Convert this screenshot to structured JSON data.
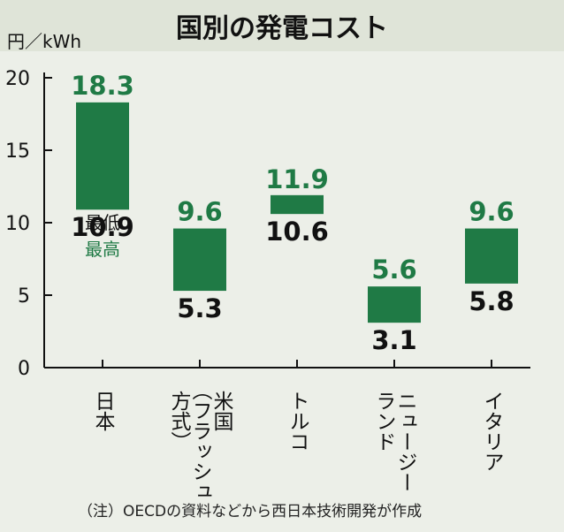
{
  "chart_data": {
    "type": "bar",
    "title": "国別の発電コスト",
    "unit_label": "円／kWh",
    "ylim": [
      0,
      20
    ],
    "yticks": [
      "0",
      "5",
      "10",
      "15",
      "20"
    ],
    "categories": [
      {
        "label_lines": [
          "日本"
        ],
        "low": 10.9,
        "high": 18.3,
        "low_label": "10.9",
        "high_label": "18.3"
      },
      {
        "label_lines": [
          "米国",
          "（フラッシュ",
          "方式）"
        ],
        "low": 5.3,
        "high": 9.6,
        "low_label": "5.3",
        "high_label": "9.6"
      },
      {
        "label_lines": [
          "トルコ"
        ],
        "low": 10.6,
        "high": 11.9,
        "low_label": "10.6",
        "high_label": "11.9"
      },
      {
        "label_lines": [
          "ニュージー",
          "ランド"
        ],
        "low": 3.1,
        "high": 5.6,
        "low_label": "3.1",
        "high_label": "5.6"
      },
      {
        "label_lines": [
          "イタリア"
        ],
        "low": 5.8,
        "high": 9.6,
        "low_label": "5.8",
        "high_label": "9.6"
      }
    ],
    "high_tag": "最高",
    "low_tag": "最低",
    "note": "（注）OECDの資料などから西日本技術開発が作成",
    "colors": {
      "bar": "#1f7a45",
      "background": "#ecefe8",
      "title_band": "#dfe4d8"
    }
  }
}
